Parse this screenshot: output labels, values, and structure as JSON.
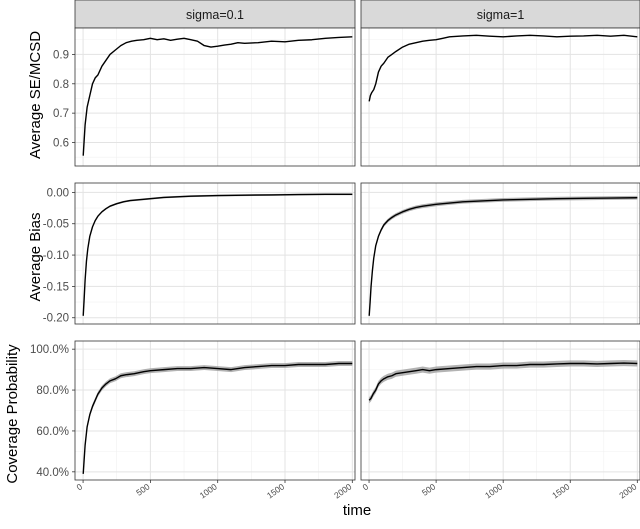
{
  "chart_data": {
    "type": "line",
    "facet_columns": [
      "sigma=0.1",
      "sigma=1"
    ],
    "x_label": "time",
    "x_ticks": [
      0,
      500,
      1000,
      1500,
      2000
    ],
    "x_tick_labels": [
      "0",
      "500",
      "1000",
      "1500",
      "2000"
    ],
    "xlim": [
      -60,
      2020
    ],
    "grid": true,
    "rows": [
      {
        "ylabel": "Average SE/MCSD",
        "ylim": [
          0.52,
          0.99
        ],
        "y_ticks": [
          0.6,
          0.7,
          0.8,
          0.9
        ],
        "y_tick_labels": [
          "0.6",
          "0.7",
          "0.8",
          "0.9"
        ],
        "band": false,
        "panels": [
          {
            "facet": "sigma=0.1",
            "x": [
              1,
              15,
              30,
              50,
              70,
              90,
              110,
              140,
              170,
              200,
              240,
              280,
              320,
              360,
              400,
              450,
              500,
              550,
              600,
              650,
              700,
              750,
              800,
              850,
              900,
              950,
              1000,
              1050,
              1100,
              1150,
              1200,
              1300,
              1400,
              1500,
              1600,
              1700,
              1800,
              1900,
              2000
            ],
            "y": [
              0.555,
              0.66,
              0.72,
              0.76,
              0.8,
              0.82,
              0.83,
              0.86,
              0.88,
              0.9,
              0.915,
              0.93,
              0.94,
              0.945,
              0.948,
              0.95,
              0.955,
              0.95,
              0.953,
              0.948,
              0.952,
              0.955,
              0.95,
              0.945,
              0.93,
              0.925,
              0.928,
              0.932,
              0.935,
              0.94,
              0.938,
              0.94,
              0.945,
              0.943,
              0.948,
              0.95,
              0.955,
              0.958,
              0.96
            ]
          },
          {
            "facet": "sigma=1",
            "x": [
              1,
              10,
              20,
              35,
              50,
              70,
              90,
              110,
              140,
              170,
              200,
              250,
              300,
              350,
              400,
              450,
              500,
              550,
              600,
              700,
              800,
              900,
              1000,
              1100,
              1200,
              1300,
              1400,
              1500,
              1600,
              1700,
              1800,
              1900,
              2000
            ],
            "y": [
              0.74,
              0.76,
              0.77,
              0.78,
              0.8,
              0.84,
              0.86,
              0.87,
              0.89,
              0.9,
              0.91,
              0.925,
              0.935,
              0.94,
              0.945,
              0.948,
              0.95,
              0.955,
              0.96,
              0.963,
              0.965,
              0.962,
              0.96,
              0.963,
              0.965,
              0.963,
              0.96,
              0.962,
              0.963,
              0.965,
              0.962,
              0.965,
              0.96
            ]
          }
        ]
      },
      {
        "ylabel": "Average Bias",
        "ylim": [
          -0.21,
          0.015
        ],
        "y_ticks": [
          0.0,
          -0.05,
          -0.1,
          -0.15,
          -0.2
        ],
        "y_tick_labels": [
          "0.00",
          "-0.05",
          "-0.10",
          "-0.15",
          "-0.20"
        ],
        "band": true,
        "panels": [
          {
            "facet": "sigma=0.1",
            "x": [
              1,
              8,
              15,
              25,
              35,
              50,
              70,
              90,
              110,
              140,
              170,
              200,
              250,
              300,
              350,
              400,
              500,
              600,
              700,
              800,
              1000,
              1200,
              1400,
              1600,
              1800,
              2000
            ],
            "y": [
              -0.197,
              -0.17,
              -0.14,
              -0.11,
              -0.09,
              -0.07,
              -0.055,
              -0.045,
              -0.038,
              -0.031,
              -0.026,
              -0.022,
              -0.018,
              -0.015,
              -0.013,
              -0.012,
              -0.01,
              -0.008,
              -0.007,
              -0.006,
              -0.005,
              -0.0045,
              -0.004,
              -0.0035,
              -0.003,
              -0.003
            ],
            "band_halfwidth": 0.0015
          },
          {
            "facet": "sigma=1",
            "x": [
              1,
              8,
              15,
              25,
              35,
              50,
              70,
              90,
              110,
              140,
              170,
              200,
              250,
              300,
              350,
              400,
              500,
              600,
              700,
              800,
              1000,
              1200,
              1400,
              1600,
              1800,
              2000
            ],
            "y": [
              -0.197,
              -0.175,
              -0.15,
              -0.125,
              -0.105,
              -0.085,
              -0.07,
              -0.06,
              -0.052,
              -0.045,
              -0.04,
              -0.036,
              -0.031,
              -0.027,
              -0.024,
              -0.022,
              -0.019,
              -0.017,
              -0.015,
              -0.014,
              -0.012,
              -0.011,
              -0.01,
              -0.0095,
              -0.009,
              -0.0085
            ],
            "band_halfwidth": 0.003
          }
        ]
      },
      {
        "ylabel": "Coverage Probability",
        "ylim": [
          0.36,
          1.04
        ],
        "y_ticks": [
          0.4,
          0.6,
          0.8,
          1.0
        ],
        "y_tick_labels": [
          "40.0%",
          "60.0%",
          "80.0%",
          "100.0%"
        ],
        "band": true,
        "panels": [
          {
            "facet": "sigma=0.1",
            "x": [
              1,
              15,
              30,
              50,
              70,
              90,
              110,
              140,
              170,
              200,
              240,
              280,
              320,
              380,
              450,
              500,
              600,
              700,
              800,
              900,
              1000,
              1100,
              1200,
              1300,
              1400,
              1500,
              1600,
              1700,
              1800,
              1900,
              2000
            ],
            "y": [
              0.39,
              0.53,
              0.62,
              0.68,
              0.72,
              0.75,
              0.78,
              0.81,
              0.83,
              0.845,
              0.855,
              0.87,
              0.875,
              0.88,
              0.89,
              0.895,
              0.9,
              0.905,
              0.905,
              0.91,
              0.905,
              0.9,
              0.91,
              0.915,
              0.92,
              0.92,
              0.925,
              0.925,
              0.925,
              0.93,
              0.93
            ],
            "band_halfwidth": 0.012
          },
          {
            "facet": "sigma=1",
            "x": [
              1,
              15,
              30,
              50,
              70,
              90,
              110,
              140,
              170,
              200,
              250,
              300,
              350,
              400,
              450,
              500,
              600,
              700,
              800,
              900,
              1000,
              1100,
              1200,
              1300,
              1400,
              1500,
              1600,
              1700,
              1800,
              1900,
              2000
            ],
            "y": [
              0.75,
              0.76,
              0.78,
              0.8,
              0.83,
              0.845,
              0.855,
              0.865,
              0.87,
              0.88,
              0.885,
              0.89,
              0.895,
              0.9,
              0.895,
              0.9,
              0.905,
              0.91,
              0.915,
              0.915,
              0.92,
              0.92,
              0.925,
              0.925,
              0.928,
              0.93,
              0.93,
              0.928,
              0.93,
              0.932,
              0.93
            ],
            "band_halfwidth": 0.015
          }
        ]
      }
    ]
  }
}
